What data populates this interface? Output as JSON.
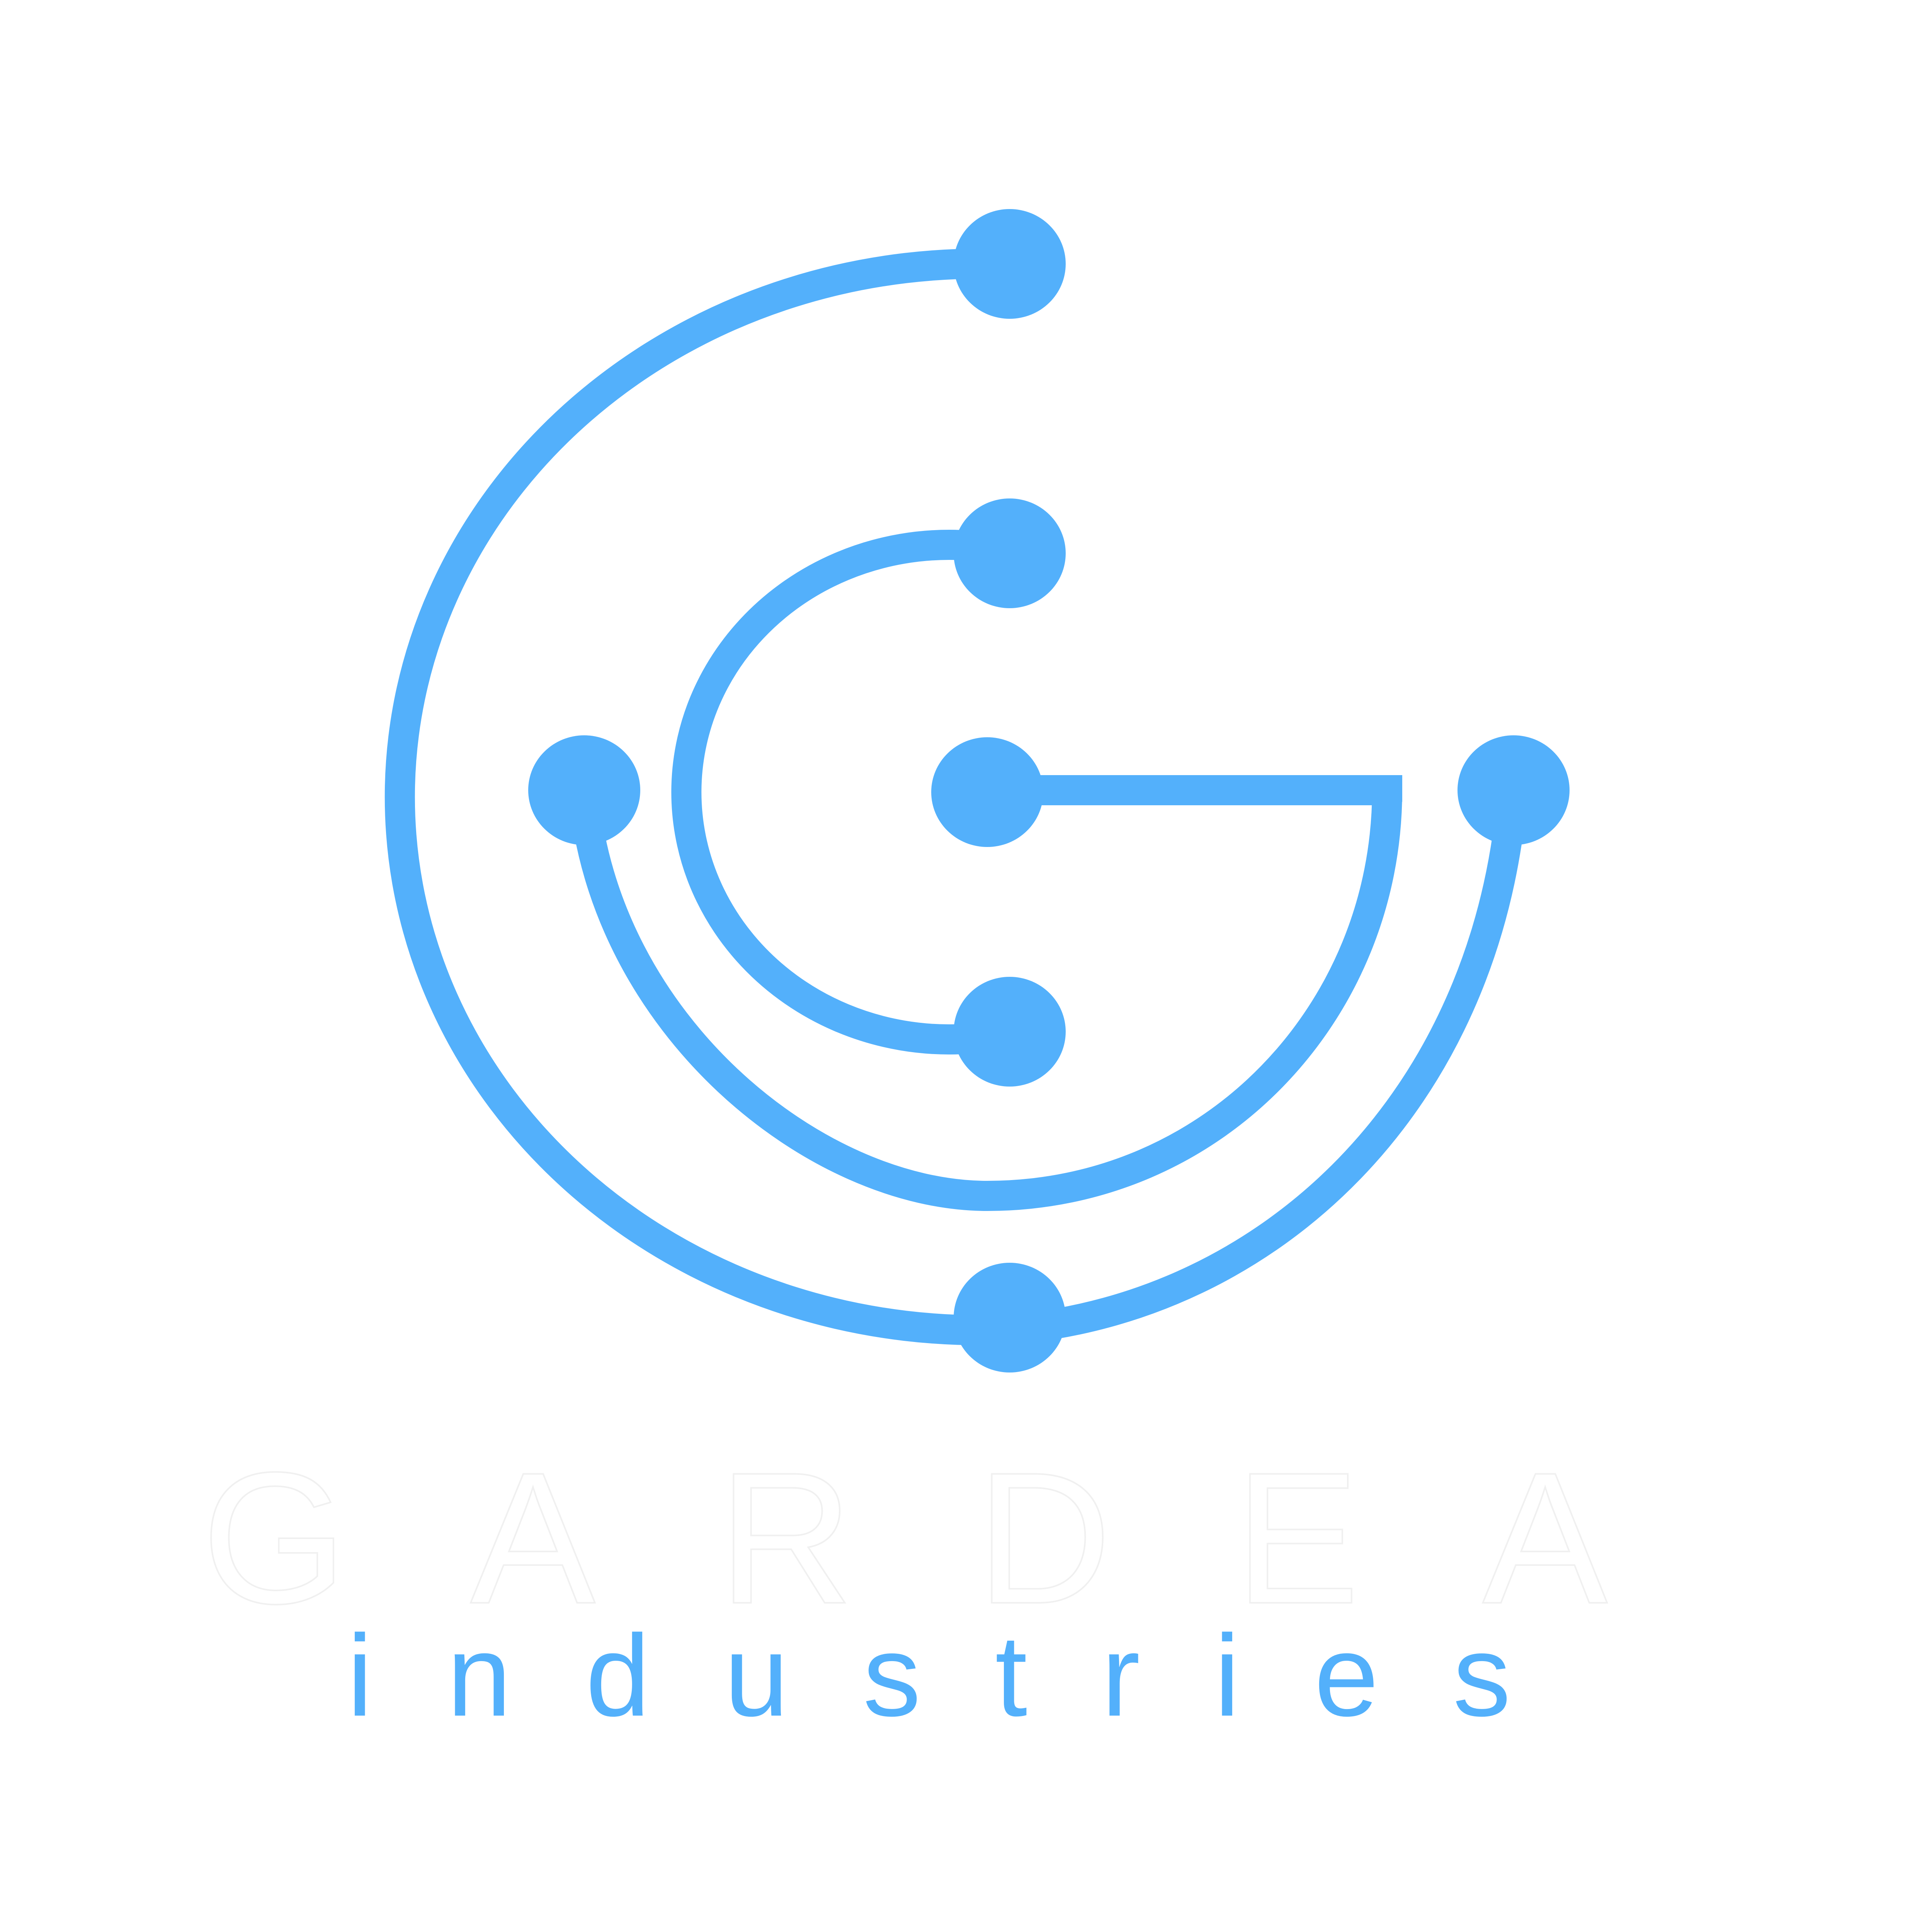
{
  "brand": {
    "name": "GARDEA",
    "tagline": "industries"
  },
  "colors": {
    "background": "#ffffff",
    "accent": "#53b0fb",
    "wordmark_fill": "#ffffff",
    "wordmark_stroke": "#f0f0f0"
  },
  "icon": "circuit-g-logo-icon"
}
